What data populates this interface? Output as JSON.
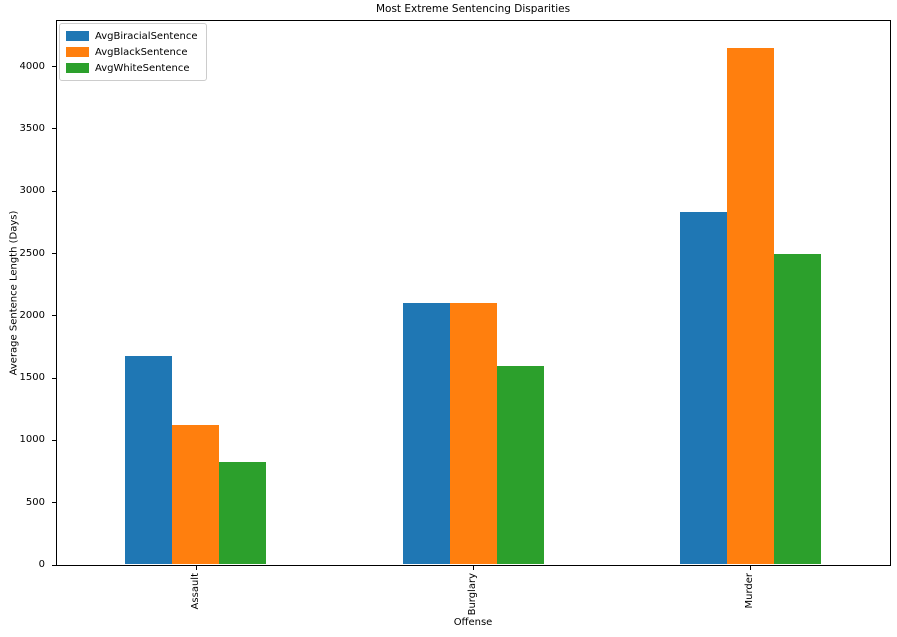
{
  "figure": {
    "background": "#ffffff",
    "spine_color": "#000000"
  },
  "chart_data": {
    "type": "bar",
    "title": "Most Extreme Sentencing Disparities",
    "xlabel": "Offense",
    "ylabel": "Average Sentence Length (Days)",
    "categories": [
      "Assault",
      "Burglary",
      "Murder"
    ],
    "series": [
      {
        "name": "AvgBiracialSentence",
        "color": "#1f77b4",
        "values": [
          1670,
          2095,
          2825
        ]
      },
      {
        "name": "AvgBlackSentence",
        "color": "#ff7f0e",
        "values": [
          1115,
          2095,
          4140
        ]
      },
      {
        "name": "AvgWhiteSentence",
        "color": "#2ca02c",
        "values": [
          815,
          1590,
          2490
        ]
      }
    ],
    "yticks": [
      0,
      500,
      1000,
      1500,
      2000,
      2500,
      3000,
      3500,
      4000
    ],
    "ylim": [
      0,
      4366
    ],
    "grid": false,
    "legend_position": "upper left",
    "xtick_rotation": 90
  }
}
